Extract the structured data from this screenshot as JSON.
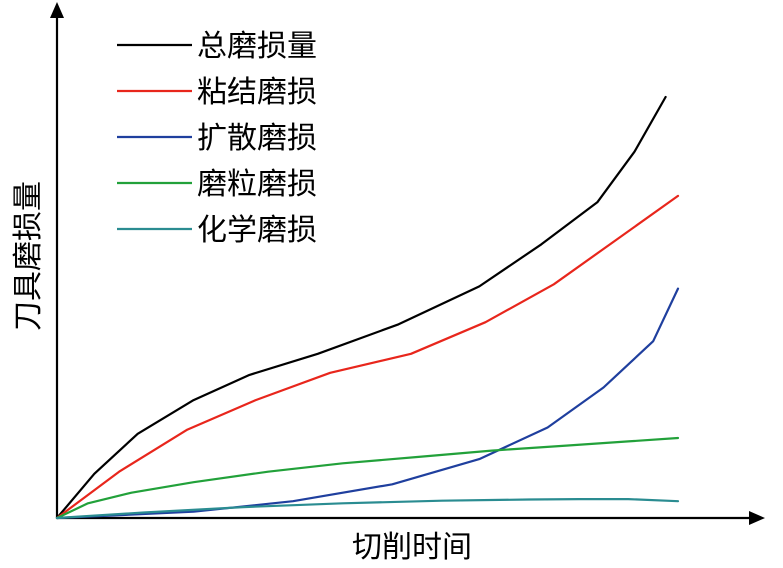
{
  "chart_data": {
    "type": "line",
    "xlabel": "切削时间",
    "ylabel": "刀具磨损量",
    "grid": false,
    "legend_position": "top-left",
    "xlim": [
      0,
      100
    ],
    "ylim": [
      0,
      100
    ],
    "series": [
      {
        "name": "总磨损量",
        "color": "#000000",
        "x": [
          0,
          6,
          13,
          22,
          31,
          42,
          55,
          68,
          78,
          87,
          93,
          98
        ],
        "y": [
          0,
          10.5,
          20,
          28,
          34,
          39,
          46,
          55,
          65,
          75,
          87,
          100
        ]
      },
      {
        "name": "粘结磨损",
        "color": "#e8261c",
        "x": [
          0,
          10,
          21,
          32,
          44,
          57,
          69,
          80,
          90,
          100
        ],
        "y": [
          0,
          11,
          21,
          28,
          34.5,
          39,
          46.5,
          55.5,
          66,
          76.5
        ]
      },
      {
        "name": "扩散磨损",
        "color": "#1f3f9e",
        "x": [
          0,
          22,
          38,
          54,
          68,
          79,
          88,
          96,
          100
        ],
        "y": [
          0,
          1.5,
          4,
          8,
          14,
          21.5,
          31,
          42,
          54.5
        ]
      },
      {
        "name": "磨粒磨损",
        "color": "#22a13a",
        "x": [
          0,
          5,
          12,
          22,
          34,
          46,
          58,
          70,
          82,
          92,
          100
        ],
        "y": [
          0,
          3.5,
          6,
          8.5,
          11,
          13,
          14.5,
          16,
          17.2,
          18.2,
          19
        ]
      },
      {
        "name": "化学磨损",
        "color": "#2a8c91",
        "x": [
          0,
          14,
          30,
          46,
          62,
          76,
          84,
          92,
          100
        ],
        "y": [
          0,
          1.3,
          2.6,
          3.5,
          4.1,
          4.4,
          4.5,
          4.5,
          4
        ]
      }
    ]
  }
}
